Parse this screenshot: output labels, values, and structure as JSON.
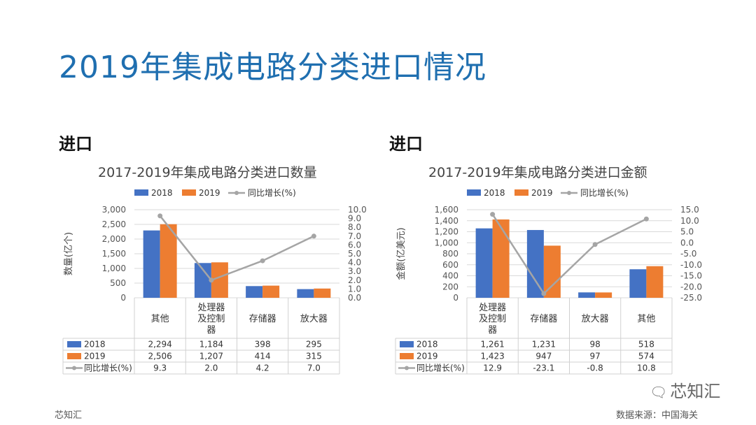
{
  "page_title": "2019年集成电路分类进口情况",
  "footer": {
    "left": "芯知汇",
    "right": "数据来源：中国海关"
  },
  "watermark": {
    "icon": "wechat-icon",
    "text": "芯知汇"
  },
  "colors": {
    "s2018": "#4472c4",
    "s2019": "#ed7d31",
    "growth": "#a5a5a5",
    "title": "#1f6fb0",
    "grid": "#d9d9d9"
  },
  "chart_data": [
    {
      "type": "bar",
      "section_label": "进口",
      "title": "2017-2019年集成电路分类进口数量",
      "ylabel": "数量(亿个)",
      "categories": [
        "其他",
        "处理器及控制器",
        "存储器",
        "放大器"
      ],
      "category_lines": [
        [
          "其他"
        ],
        [
          "处理器",
          "及控制",
          "器"
        ],
        [
          "存储器"
        ],
        [
          "放大器"
        ]
      ],
      "series": [
        {
          "name": "2018",
          "values": [
            2294,
            1184,
            398,
            295
          ]
        },
        {
          "name": "2019",
          "values": [
            2506,
            1207,
            414,
            315
          ]
        }
      ],
      "line_series": {
        "name": "同比增长(%)",
        "values": [
          9.3,
          2.0,
          4.2,
          7.0
        ]
      },
      "ylim": [
        0,
        3000
      ],
      "yticks": [
        0,
        500,
        1000,
        1500,
        2000,
        2500,
        3000
      ],
      "ytick_labels": [
        "0",
        "500",
        "1,000",
        "1,500",
        "2,000",
        "2,500",
        "3,000"
      ],
      "y2lim": [
        0,
        10
      ],
      "y2ticks": [
        0,
        1,
        2,
        3,
        4,
        5,
        6,
        7,
        8,
        9,
        10
      ],
      "y2tick_labels": [
        "0.0",
        "1.0",
        "2.0",
        "3.0",
        "4.0",
        "5.0",
        "6.0",
        "7.0",
        "8.0",
        "9.0",
        "10.0"
      ],
      "table_rows": [
        {
          "label": "2018",
          "values": [
            "2,294",
            "1,184",
            "398",
            "295"
          ]
        },
        {
          "label": "2019",
          "values": [
            "2,506",
            "1,207",
            "414",
            "315"
          ]
        },
        {
          "label": "同比增长(%)",
          "values": [
            "9.3",
            "2.0",
            "4.2",
            "7.0"
          ]
        }
      ],
      "legend": [
        "2018",
        "2019",
        "同比增长(%)"
      ]
    },
    {
      "type": "bar",
      "section_label": "进口",
      "title": "2017-2019年集成电路分类进口金额",
      "ylabel": "金额(亿美元)",
      "categories": [
        "处理器及控制器",
        "存储器",
        "放大器",
        "其他"
      ],
      "category_lines": [
        [
          "处理器",
          "及控制",
          "器"
        ],
        [
          "存储器"
        ],
        [
          "放大器"
        ],
        [
          "其他"
        ]
      ],
      "series": [
        {
          "name": "2018",
          "values": [
            1261,
            1231,
            98,
            518
          ]
        },
        {
          "name": "2019",
          "values": [
            1423,
            947,
            97,
            574
          ]
        }
      ],
      "line_series": {
        "name": "同比增长(%)",
        "values": [
          12.9,
          -23.1,
          -0.8,
          10.8
        ]
      },
      "ylim": [
        0,
        1600
      ],
      "yticks": [
        0,
        200,
        400,
        600,
        800,
        1000,
        1200,
        1400,
        1600
      ],
      "ytick_labels": [
        "0",
        "200",
        "400",
        "600",
        "800",
        "1,000",
        "1,200",
        "1,400",
        "1,600"
      ],
      "y2lim": [
        -25,
        15
      ],
      "y2ticks": [
        -25,
        -20,
        -15,
        -10,
        -5,
        0,
        5,
        10,
        15
      ],
      "y2tick_labels": [
        "-25.0",
        "-20.0",
        "-15.0",
        "-10.0",
        "-5.0",
        "0.0",
        "5.0",
        "10.0",
        "15.0"
      ],
      "table_rows": [
        {
          "label": "2018",
          "values": [
            "1,261",
            "1,231",
            "98",
            "518"
          ]
        },
        {
          "label": "2019",
          "values": [
            "1,423",
            "947",
            "97",
            "574"
          ]
        },
        {
          "label": "同比增长(%)",
          "values": [
            "12.9",
            "-23.1",
            "-0.8",
            "10.8"
          ]
        }
      ],
      "legend": [
        "2018",
        "2019",
        "同比增长(%)"
      ]
    }
  ]
}
